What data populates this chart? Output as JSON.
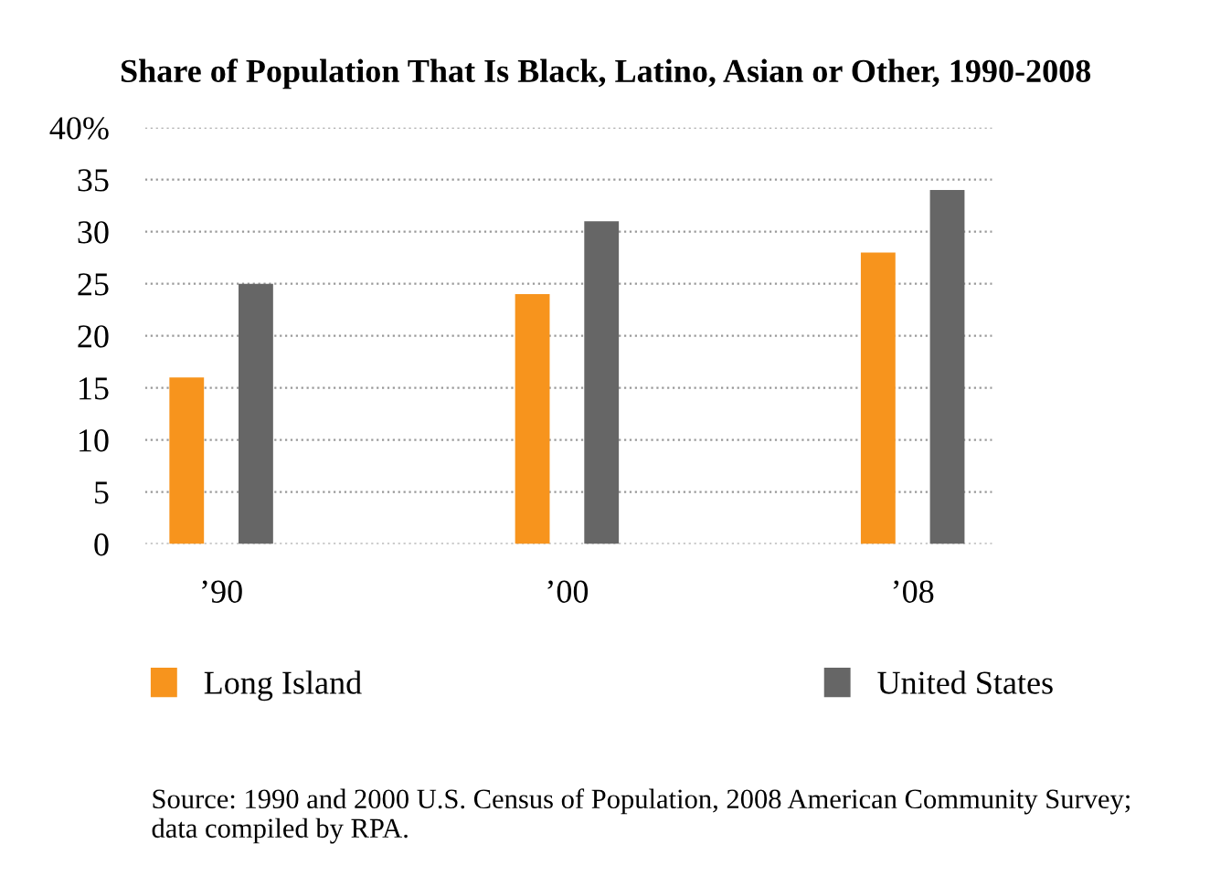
{
  "chart_data": {
    "type": "bar",
    "title": "Share of Population That Is Black, Latino, Asian or Other, 1990-2008",
    "categories": [
      "’90",
      "’00",
      "’08"
    ],
    "series": [
      {
        "name": "Long Island",
        "color": "#f7941d",
        "values": [
          16,
          24,
          28
        ]
      },
      {
        "name": "United States",
        "color": "#666666",
        "values": [
          25,
          31,
          34
        ]
      }
    ],
    "ylim": [
      0,
      40
    ],
    "yticks": [
      0,
      5,
      10,
      15,
      20,
      25,
      30,
      35,
      {
        "value": 40,
        "label": "40%"
      }
    ],
    "grid": "y",
    "legend": "bottom",
    "annotations": [
      "Source: 1990 and 2000 U.S. Census of Population, 2008 American Community Survey;\ndata compiled by RPA."
    ]
  }
}
